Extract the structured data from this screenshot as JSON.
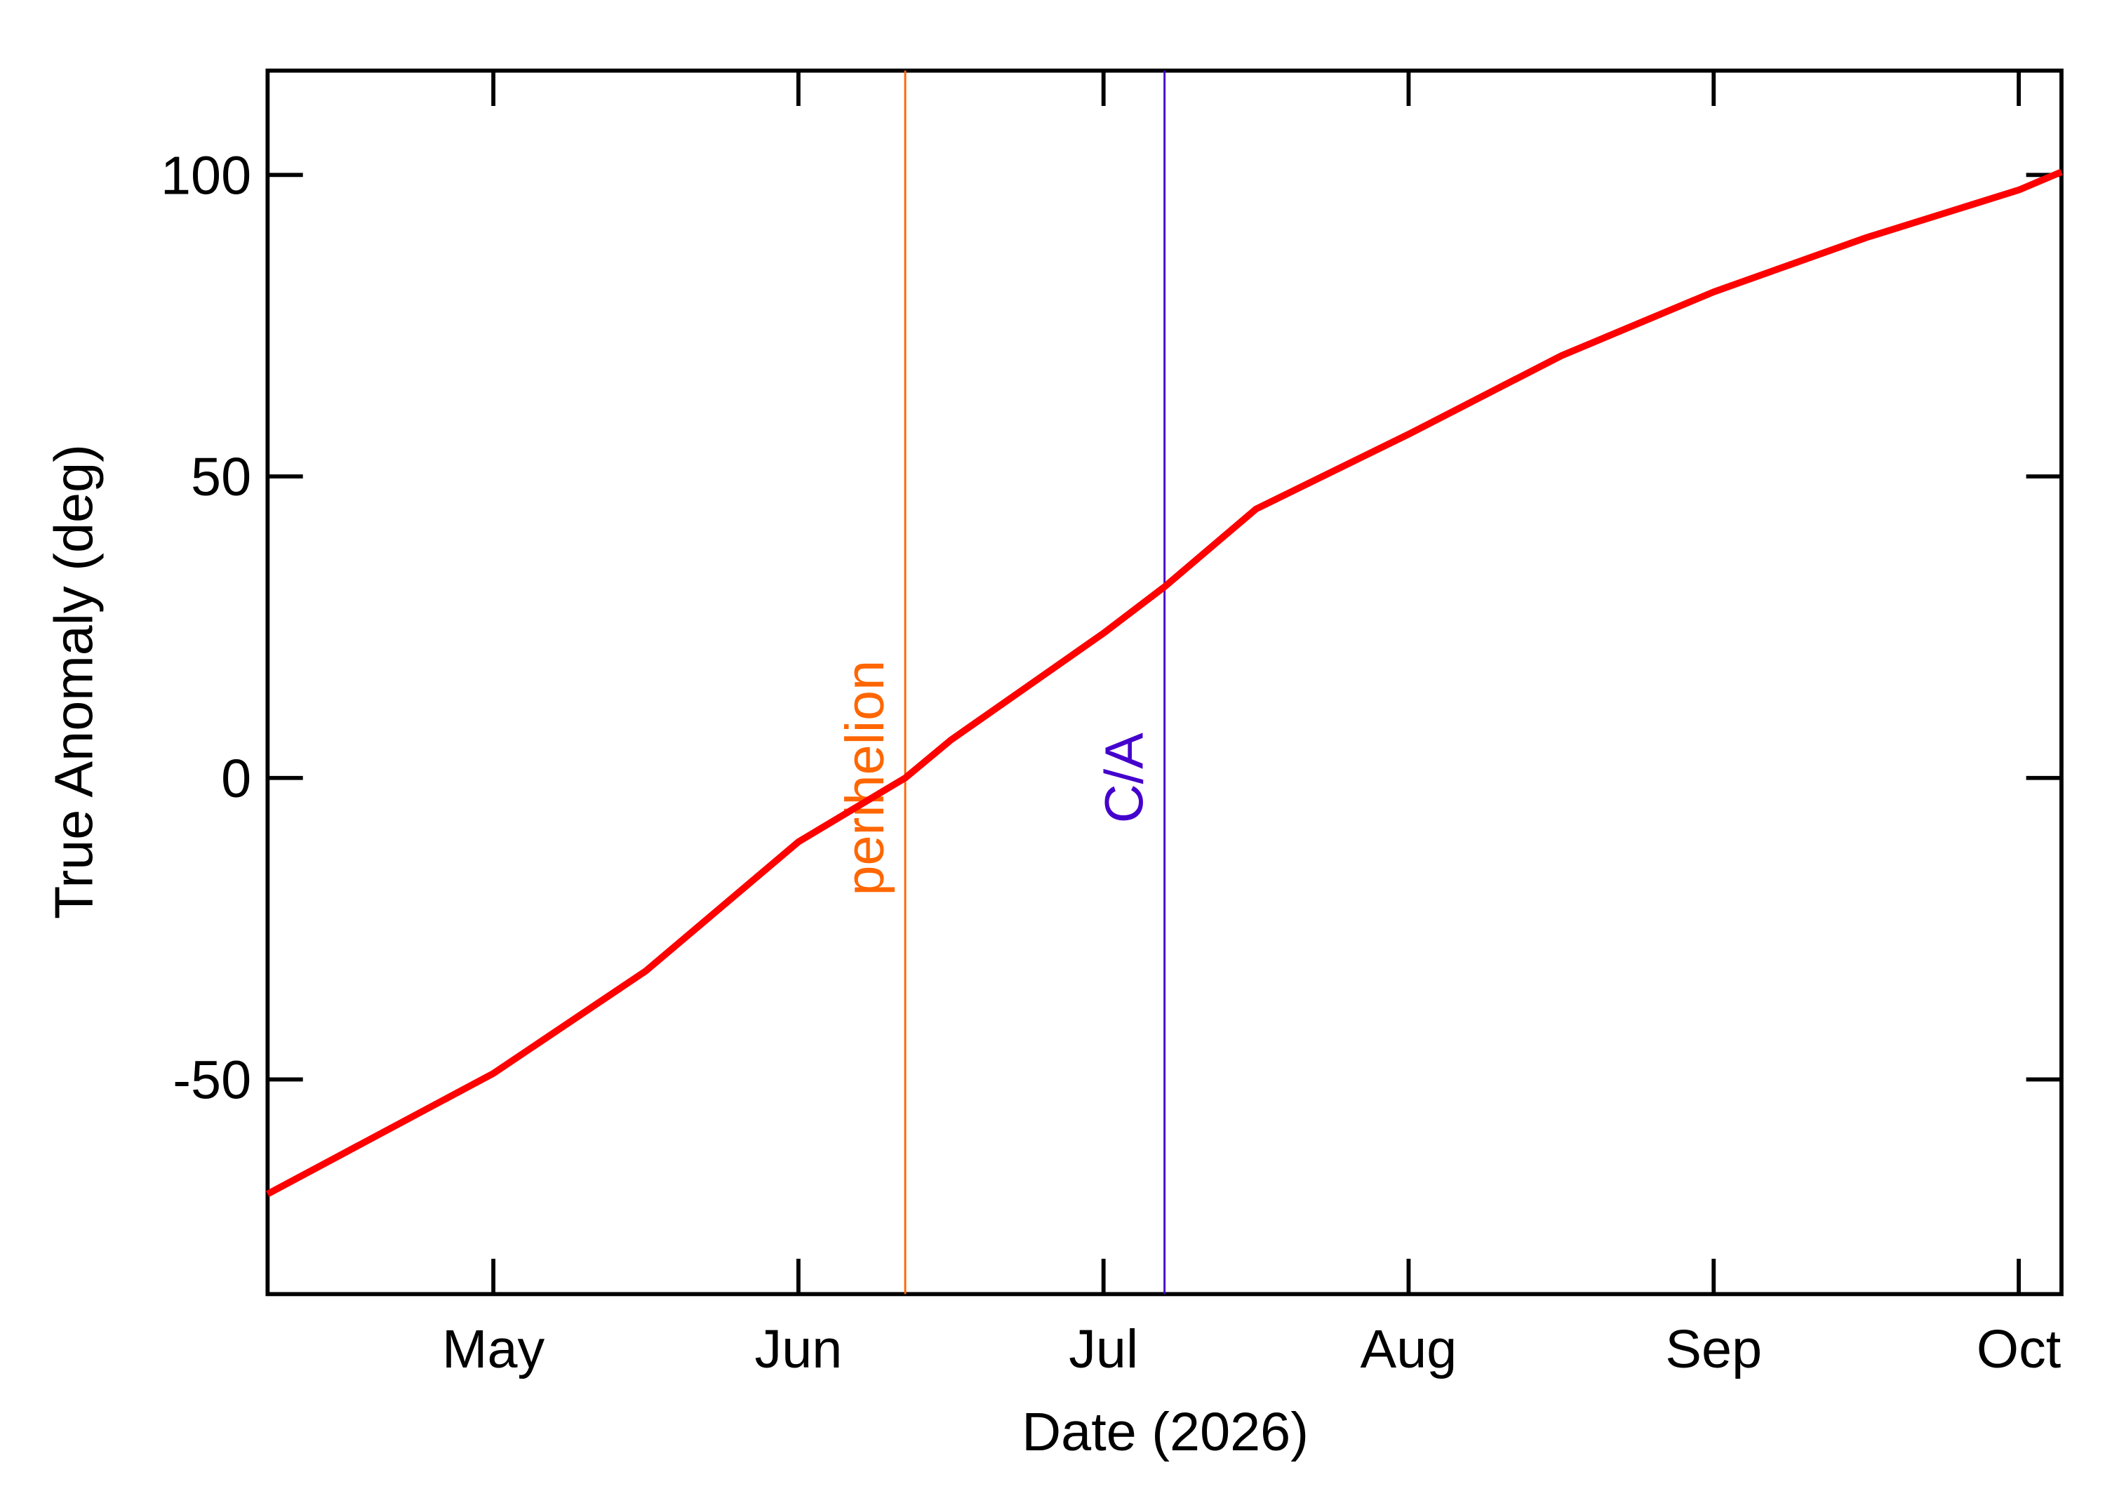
{
  "chart_data": {
    "type": "line",
    "xlabel": "Date (2026)",
    "ylabel": "True Anomaly (deg)",
    "x": [
      4.26,
      5,
      5.5,
      6,
      6.35,
      6.5,
      7,
      7.2,
      7.5,
      8,
      8.5,
      9,
      9.5,
      10,
      10.14
    ],
    "series": [
      {
        "color": "#ff0000",
        "values": [
          -69,
          -49,
          -32,
          -10.6,
          0,
          6.3,
          24,
          31.7,
          44.6,
          57,
          70,
          80.6,
          89.6,
          97.5,
          100.5
        ]
      }
    ],
    "xlim": [
      4.26,
      10.14
    ],
    "xticks": [
      {
        "value": 5,
        "label": "May"
      },
      {
        "value": 6,
        "label": "Jun"
      },
      {
        "value": 7,
        "label": "Jul"
      },
      {
        "value": 8,
        "label": "Aug"
      },
      {
        "value": 9,
        "label": "Sep"
      },
      {
        "value": 10,
        "label": "Oct"
      }
    ],
    "ylim": [
      -85.6,
      117.3
    ],
    "yticks": [
      -50,
      0,
      50,
      100
    ],
    "annotations": [
      {
        "text": "perihelion",
        "x": 6.35,
        "color": "#ff6600"
      },
      {
        "text": "C/A",
        "x": 7.2,
        "color": "#4400cc"
      }
    ]
  }
}
